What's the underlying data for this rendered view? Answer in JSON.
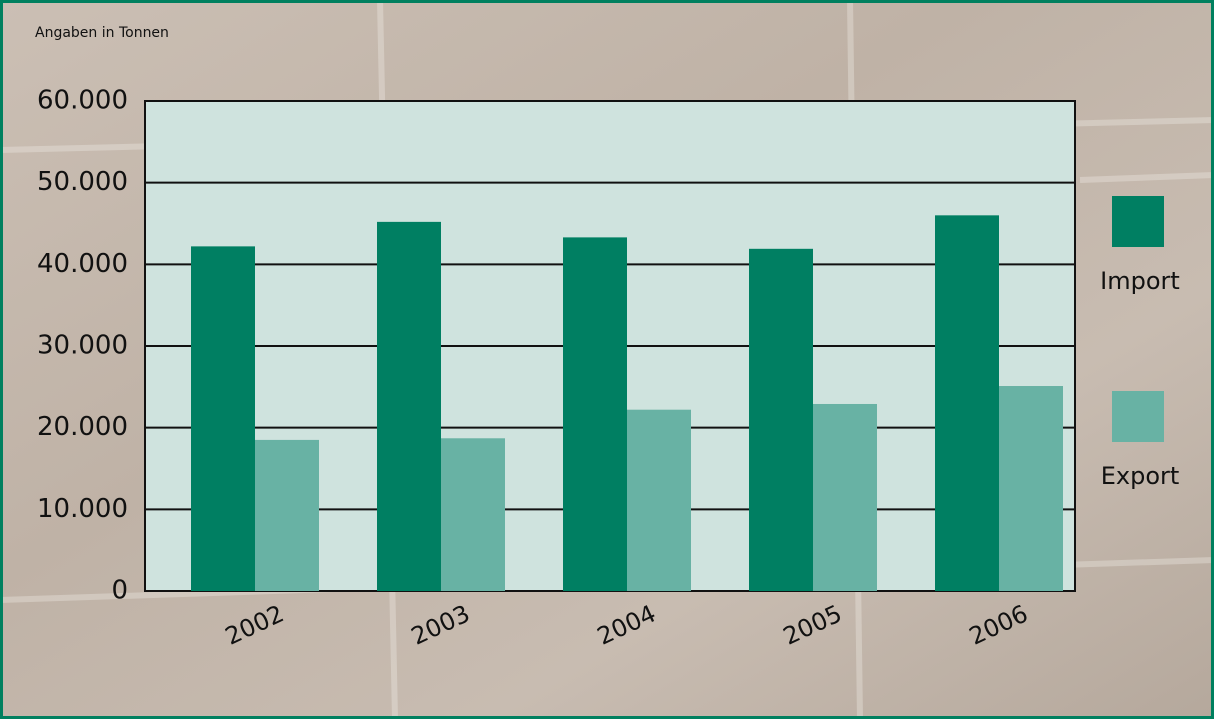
{
  "chart_data": {
    "type": "bar",
    "y_axis_label": "Angaben in Tonnen",
    "categories": [
      "2002",
      "2003",
      "2004",
      "2005",
      "2006"
    ],
    "series": [
      {
        "name": "Import",
        "color": "#007f62",
        "values": [
          42200,
          45200,
          43300,
          41900,
          46000
        ]
      },
      {
        "name": "Export",
        "color": "#68b2a4",
        "values": [
          18500,
          18700,
          22200,
          22900,
          25100
        ]
      }
    ],
    "ylim": [
      0,
      60000
    ],
    "yticks": [
      0,
      {
        "value": 10000,
        "label": "10.000"
      },
      {
        "value": 20000,
        "label": "20.000"
      },
      {
        "value": 30000,
        "label": "30.000"
      },
      {
        "value": 40000,
        "label": "40.000"
      },
      {
        "value": 50000,
        "label": "50.000"
      },
      {
        "value": 60000,
        "label": "60.000"
      }
    ],
    "grid": true,
    "legend": "right",
    "plot_background": "#cfe3de"
  }
}
